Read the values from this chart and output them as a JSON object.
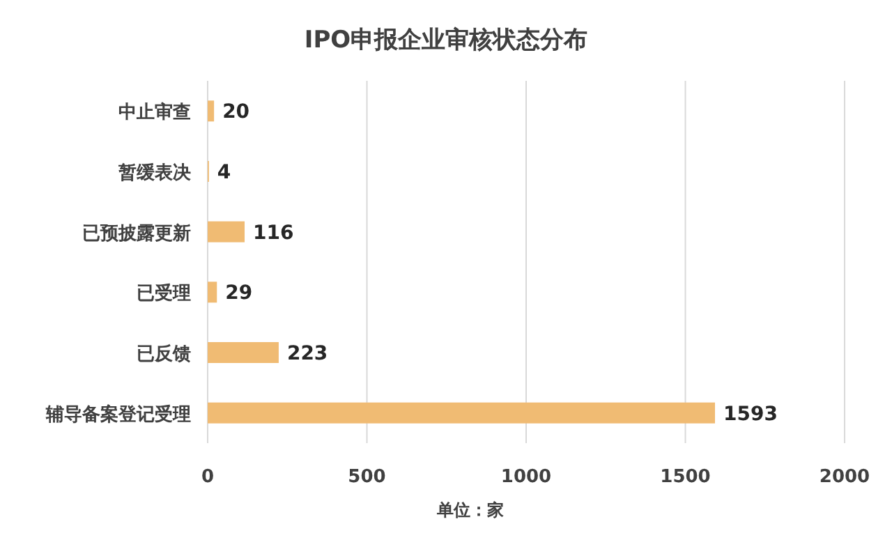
{
  "chart_data": {
    "type": "bar",
    "orientation": "horizontal",
    "title": "IPO申报企业审核状态分布",
    "xlabel": "单位：家",
    "categories": [
      "中止审查",
      "暂缓表决",
      "已预披露更新",
      "已受理",
      "已反馈",
      "辅导备案登记受理"
    ],
    "values": [
      20,
      4,
      116,
      29,
      223,
      1593
    ],
    "color": "#f0bb73",
    "xlim": [
      0,
      2000
    ],
    "xticks": [
      0,
      500,
      1000,
      1500,
      2000
    ],
    "grid": "x",
    "data_labels": true
  }
}
